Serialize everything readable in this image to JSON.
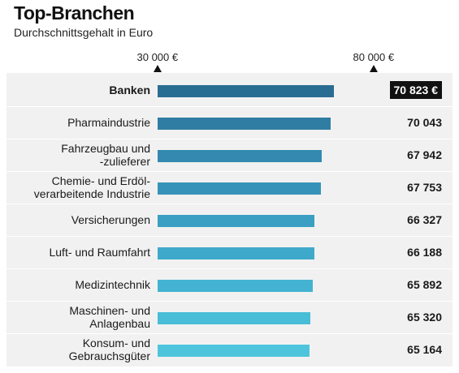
{
  "chart_data": {
    "type": "bar",
    "orientation": "horizontal",
    "title": "Top-Branchen",
    "subtitle": "Durchschnittsgehalt in Euro",
    "axis_ticks": [
      {
        "value": 30000,
        "label": "30 000 €"
      },
      {
        "value": 80000,
        "label": "80 000 €"
      }
    ],
    "xlim": [
      30000,
      80000
    ],
    "categories": [
      [
        "Banken"
      ],
      [
        "Pharmaindustrie"
      ],
      [
        "Fahrzeugbau und",
        "-zulieferer"
      ],
      [
        "Chemie- und Erdöl-",
        "verarbeitende Industrie"
      ],
      [
        "Versicherungen"
      ],
      [
        "Luft- und Raumfahrt"
      ],
      [
        "Medizintechnik"
      ],
      [
        "Maschinen- und",
        "Anlagenbau"
      ],
      [
        "Konsum- und",
        "Gebrauchsgüter"
      ]
    ],
    "values": [
      70823,
      70043,
      67942,
      67753,
      66327,
      66188,
      65892,
      65320,
      65164
    ],
    "value_labels": [
      "70 823 €",
      "70 043",
      "67 942",
      "67 753",
      "66 327",
      "66 188",
      "65 892",
      "65 320",
      "65 164"
    ],
    "highlight_index": 0,
    "bar_colors": [
      "#2a6d92",
      "#2f7da3",
      "#3389b0",
      "#3692b8",
      "#3a9fc2",
      "#3ea9ca",
      "#43b3d1",
      "#48bdd7",
      "#4ec5dc"
    ],
    "panel_color": "#f1f1f1"
  }
}
